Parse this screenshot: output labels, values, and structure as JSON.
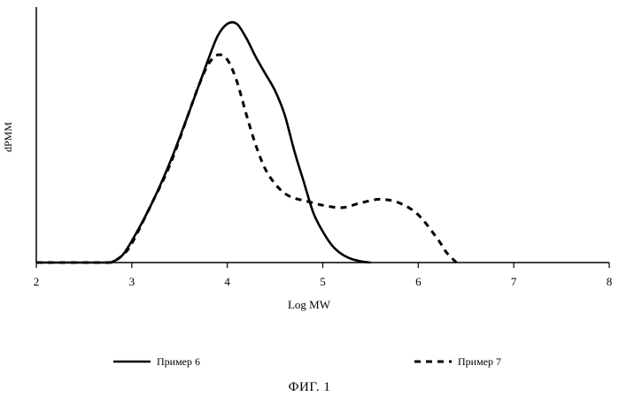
{
  "chart_data": {
    "type": "line",
    "xlabel": "Log MW",
    "ylabel": "dPMM",
    "xlim": [
      2,
      8
    ],
    "x_ticks": [
      "2",
      "3",
      "4",
      "5",
      "6",
      "7",
      "8"
    ],
    "ylim": [
      0,
      1.0
    ],
    "grid": false,
    "legend_position": "bottom",
    "series": [
      {
        "name": "Пример 6",
        "style": "solid",
        "points": [
          [
            2.0,
            0
          ],
          [
            2.7,
            0
          ],
          [
            2.8,
            0.004
          ],
          [
            2.9,
            0.03
          ],
          [
            3.0,
            0.09
          ],
          [
            3.2,
            0.24
          ],
          [
            3.4,
            0.42
          ],
          [
            3.6,
            0.63
          ],
          [
            3.8,
            0.85
          ],
          [
            3.9,
            0.95
          ],
          [
            4.0,
            1.0
          ],
          [
            4.1,
            1.0
          ],
          [
            4.2,
            0.94
          ],
          [
            4.3,
            0.86
          ],
          [
            4.4,
            0.79
          ],
          [
            4.5,
            0.72
          ],
          [
            4.6,
            0.62
          ],
          [
            4.7,
            0.47
          ],
          [
            4.8,
            0.34
          ],
          [
            4.9,
            0.21
          ],
          [
            5.0,
            0.13
          ],
          [
            5.1,
            0.07
          ],
          [
            5.2,
            0.035
          ],
          [
            5.3,
            0.015
          ],
          [
            5.4,
            0.005
          ],
          [
            5.5,
            0
          ]
        ]
      },
      {
        "name": "Пример 7",
        "style": "dashed",
        "points": [
          [
            2.0,
            0
          ],
          [
            2.7,
            0
          ],
          [
            2.8,
            0.004
          ],
          [
            2.9,
            0.03
          ],
          [
            3.0,
            0.08
          ],
          [
            3.2,
            0.24
          ],
          [
            3.4,
            0.41
          ],
          [
            3.6,
            0.63
          ],
          [
            3.7,
            0.74
          ],
          [
            3.8,
            0.83
          ],
          [
            3.9,
            0.87
          ],
          [
            4.0,
            0.85
          ],
          [
            4.1,
            0.76
          ],
          [
            4.2,
            0.62
          ],
          [
            4.3,
            0.49
          ],
          [
            4.4,
            0.39
          ],
          [
            4.5,
            0.33
          ],
          [
            4.6,
            0.29
          ],
          [
            4.7,
            0.27
          ],
          [
            4.8,
            0.26
          ],
          [
            4.9,
            0.25
          ],
          [
            5.0,
            0.24
          ],
          [
            5.2,
            0.23
          ],
          [
            5.4,
            0.25
          ],
          [
            5.6,
            0.265
          ],
          [
            5.8,
            0.25
          ],
          [
            6.0,
            0.2
          ],
          [
            6.2,
            0.1
          ],
          [
            6.3,
            0.04
          ],
          [
            6.4,
            0
          ]
        ]
      }
    ]
  },
  "figure_caption": "ФИГ. 1"
}
